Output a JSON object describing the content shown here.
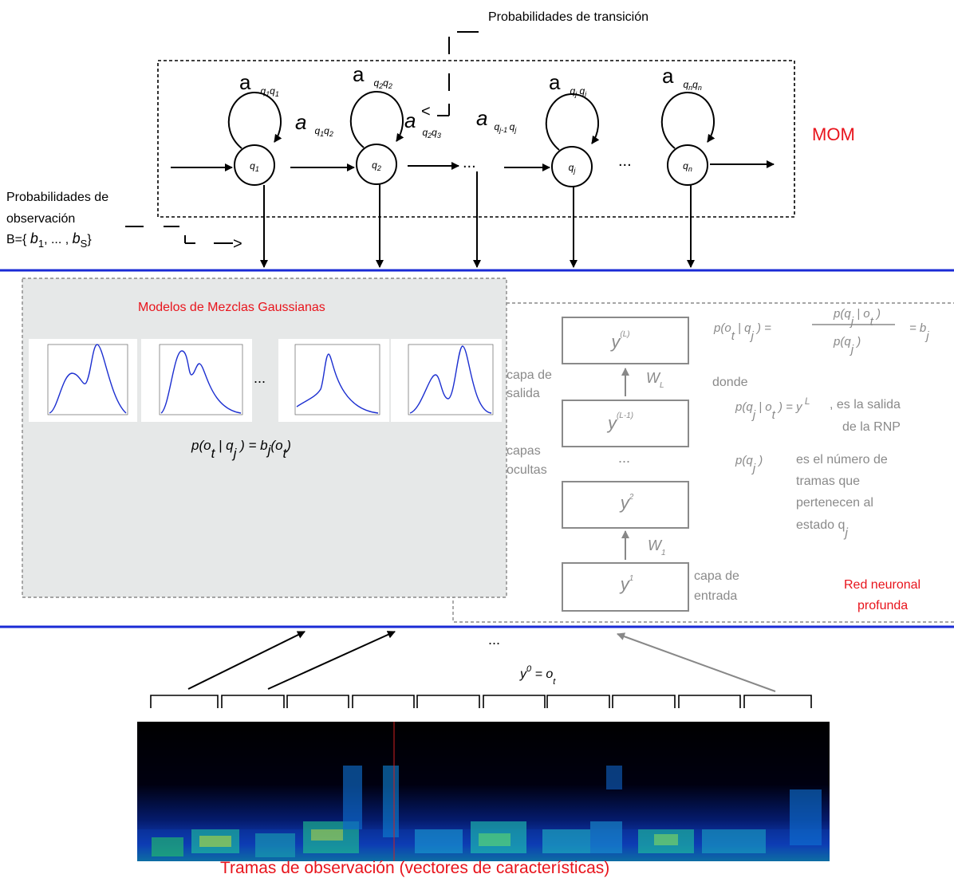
{
  "colors": {
    "accent_red": "#e8141c",
    "band_blue": "#1a2bd6",
    "gmm_bg": "#e6e8e8",
    "gray_text": "#8a8a8a",
    "curve_blue": "#1c2fd0"
  },
  "hmm": {
    "title": "Probabilidades de transición",
    "label": "MOM",
    "states": [
      "q1",
      "q2",
      "qj",
      "qn"
    ],
    "self_transitions": [
      "a q1q1",
      "a q2q2",
      "a qjqj",
      "a qnqn"
    ],
    "transitions": [
      "a q1q2",
      "a q2q3",
      "a qj-1 qj"
    ],
    "ellipsis": "...",
    "obs_prob_line1": "Probabilidades de",
    "obs_prob_line2": "observación",
    "obs_prob_line3": "B={ b1, ... , bS}",
    "arrow_glyph_left": "<",
    "arrow_glyph_right": ">"
  },
  "gmm": {
    "title": "Modelos de Mezclas Gaussianas",
    "ellipsis": "...",
    "formula": "p(ot | qj ) = bj(ot)"
  },
  "dnn": {
    "layers": [
      "y(L)",
      "y(L-1)",
      "...",
      "y2",
      "y1"
    ],
    "weights": [
      "WL",
      "W1"
    ],
    "output_label_1": "capa de",
    "output_label_2": "salida",
    "hidden_label_1": "capas",
    "hidden_label_2": "ocultas",
    "input_label_1": "capa de",
    "input_label_2": "entrada",
    "formula_main": "p(ot | qj ) = p(qj | ot) / p(qj ) = bj",
    "donde": "donde",
    "post_formula": "p(qj | ot ) = y L",
    "post_text_1": ", es la salida",
    "post_text_2": "de la RNP",
    "prior_formula": "p(qj )",
    "prior_text_1": "es el número de",
    "prior_text_2": "tramas que",
    "prior_text_3": "pertenecen  al",
    "prior_text_4": "estado qj",
    "label_1": "Red neuronal",
    "label_2": "profunda"
  },
  "bottom": {
    "ellipsis": "...",
    "formula": "y0  =  ot",
    "caption": "Tramas de observación  (vectores de características)"
  }
}
